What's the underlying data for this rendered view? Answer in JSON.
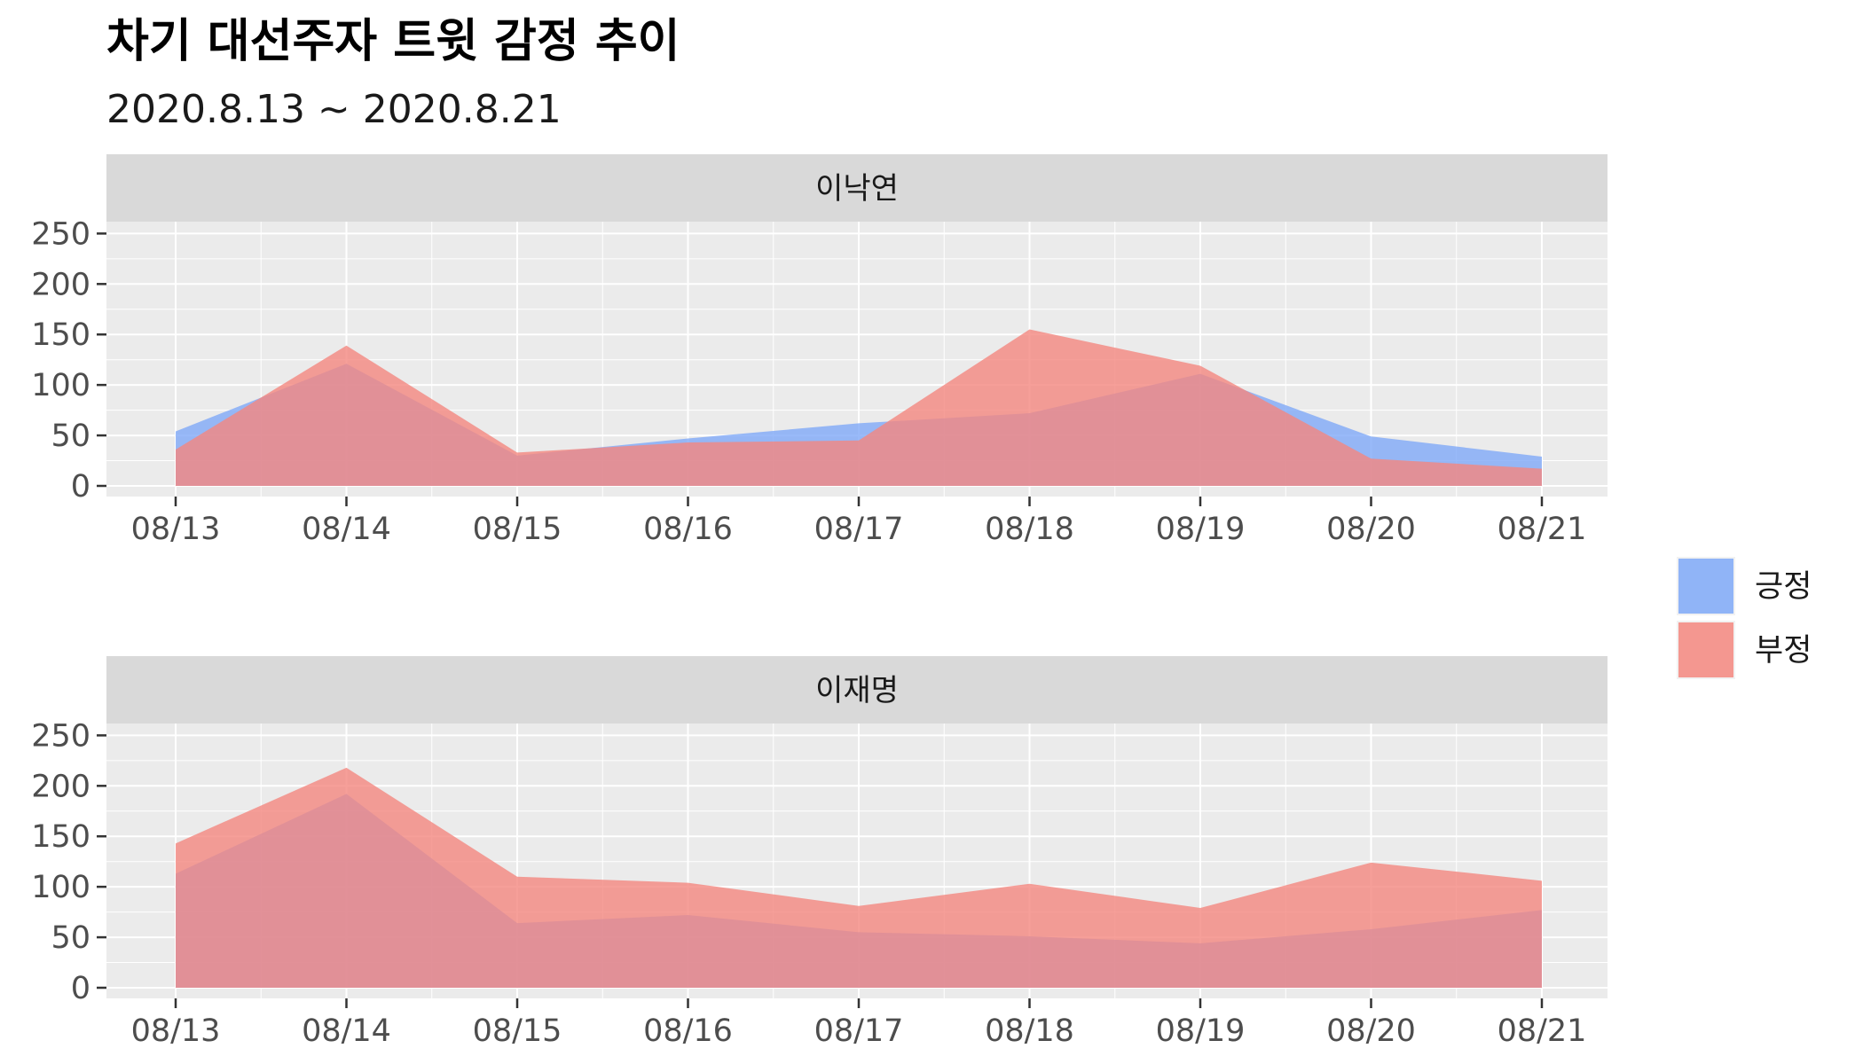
{
  "chart_data": {
    "type": "area",
    "title": "차기 대선주자 트윗 감정 추이",
    "subtitle": "2020.8.13 ~ 2020.8.21",
    "x": [
      "08/13",
      "08/14",
      "08/15",
      "08/16",
      "08/17",
      "08/18",
      "08/19",
      "08/20",
      "08/21"
    ],
    "ylim": [
      0,
      260
    ],
    "yticks": [
      0,
      50,
      100,
      150,
      200,
      250
    ],
    "grid": true,
    "stacked": false,
    "legend_position": "right",
    "legend": [
      {
        "name": "긍정",
        "color": "#7fa9f8"
      },
      {
        "name": "부정",
        "color": "#f4877f"
      }
    ],
    "panels": [
      {
        "label": "이낙연",
        "series": [
          {
            "name": "긍정",
            "values": [
              54,
              121,
              30,
              47,
              62,
              72,
              111,
              49,
              29
            ]
          },
          {
            "name": "부정",
            "values": [
              36,
              139,
              33,
              43,
              45,
              155,
              119,
              27,
              17
            ]
          }
        ]
      },
      {
        "label": "이재명",
        "series": [
          {
            "name": "긍정",
            "values": [
              113,
              192,
              64,
              72,
              55,
              51,
              44,
              58,
              77
            ]
          },
          {
            "name": "부정",
            "values": [
              143,
              218,
              110,
              104,
              81,
              103,
              79,
              124,
              106
            ]
          }
        ]
      }
    ]
  }
}
